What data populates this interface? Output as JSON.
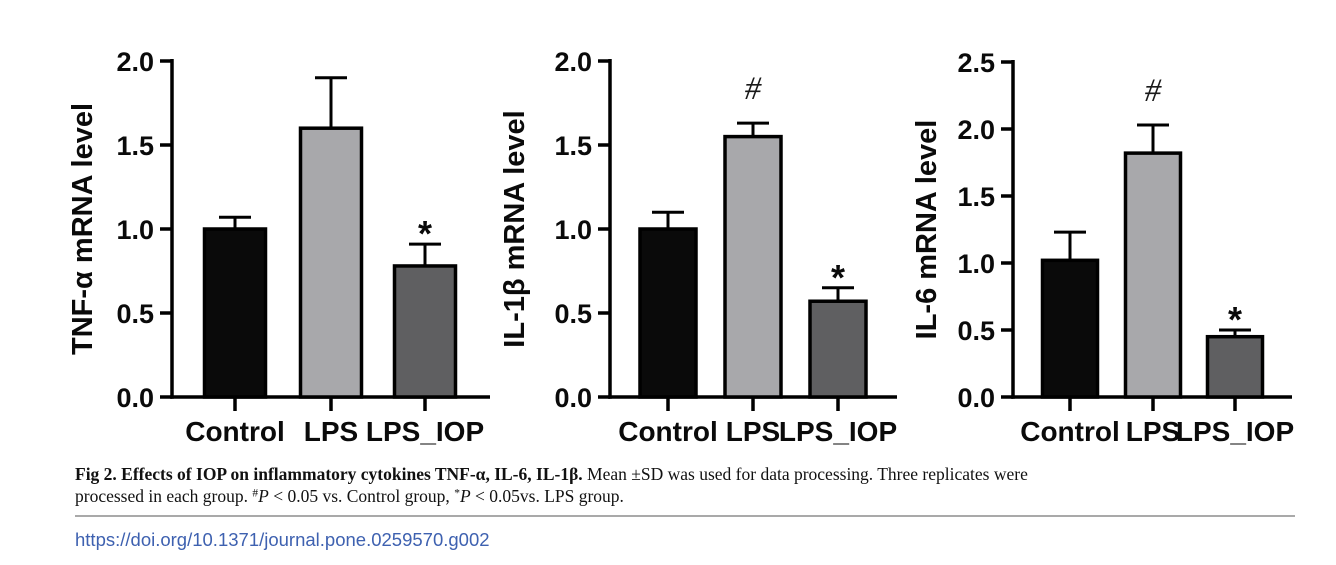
{
  "figure": {
    "caption": {
      "bold": "Fig 2. Effects of IOP on inflammatory cytokines TNF-α, IL-6, IL-1β.",
      "line1_rest": "Mean ±SD was used for data processing. Three replicates were",
      "line2_start": "processed in each group. ",
      "sig1_sup": "#",
      "sig1_p": "P",
      "sig1_rest": " < 0.05 vs. Control group, ",
      "sig2_sup": "*",
      "sig2_p": "P",
      "sig2_rest": " < 0.05vs. LPS group."
    },
    "doi": {
      "text": "https://doi.org/10.1371/journal.pone.0259570.g002",
      "href": "https://doi.org/10.1371/journal.pone.0259570.g002"
    }
  },
  "colors": {
    "bar_control": "#0a0a0a",
    "bar_lps": "#a8a8ab",
    "bar_lps_iop": "#5f5f61",
    "axis": "#000000",
    "link_blue": "#3e61b0",
    "divider_gray": "#a9a9a9"
  },
  "chart_data": [
    {
      "type": "bar",
      "title": "",
      "ylabel": "TNF-α mRNA level",
      "xlabel": "",
      "categories": [
        "Control",
        "LPS",
        "LPS_IOP"
      ],
      "values": [
        1.0,
        1.6,
        0.78
      ],
      "errors": [
        0.07,
        0.3,
        0.13
      ],
      "sig_markers": [
        "",
        "",
        "*"
      ],
      "ylim": [
        0,
        2.0
      ],
      "yticks": [
        0.0,
        0.5,
        1.0,
        1.5,
        2.0
      ],
      "grid": "off",
      "legend": "none",
      "bar_colors": [
        "#0a0a0a",
        "#a8a8ab",
        "#5f5f61"
      ]
    },
    {
      "type": "bar",
      "title": "",
      "ylabel": "IL-1β mRNA level",
      "xlabel": "",
      "categories": [
        "Control",
        "LPS",
        "LPS_IOP"
      ],
      "values": [
        1.0,
        1.55,
        0.57
      ],
      "errors": [
        0.1,
        0.08,
        0.08
      ],
      "sig_markers": [
        "",
        "#",
        "*"
      ],
      "ylim": [
        0,
        2.0
      ],
      "yticks": [
        0.0,
        0.5,
        1.0,
        1.5,
        2.0
      ],
      "grid": "off",
      "legend": "none",
      "bar_colors": [
        "#0a0a0a",
        "#a8a8ab",
        "#5f5f61"
      ]
    },
    {
      "type": "bar",
      "title": "",
      "ylabel": "IL-6 mRNA level",
      "xlabel": "",
      "categories": [
        "Control",
        "LPS",
        "LPS_IOP"
      ],
      "values": [
        1.02,
        1.82,
        0.45
      ],
      "errors": [
        0.21,
        0.21,
        0.05
      ],
      "sig_markers": [
        "",
        "#",
        "*"
      ],
      "ylim": [
        0,
        2.5
      ],
      "yticks": [
        0.0,
        0.5,
        1.0,
        1.5,
        2.0,
        2.5
      ],
      "grid": "off",
      "legend": "none",
      "bar_colors": [
        "#0a0a0a",
        "#a8a8ab",
        "#5f5f61"
      ]
    }
  ]
}
